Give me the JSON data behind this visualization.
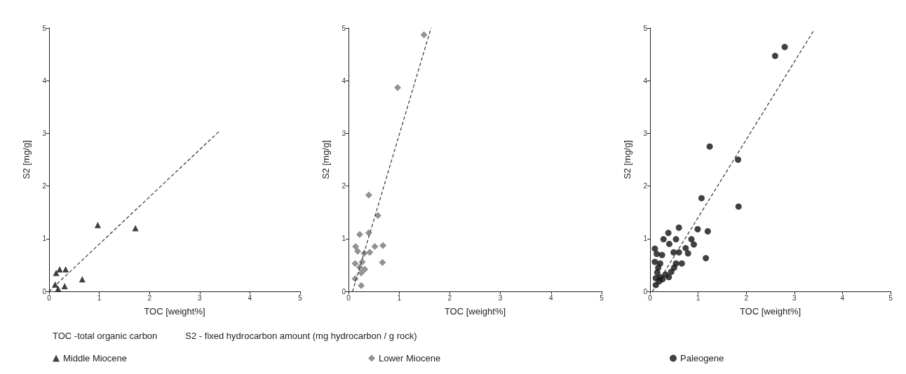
{
  "chart_data": [
    {
      "type": "scatter",
      "xlabel": "TOC [weight%]",
      "ylabel": "S2 [mg/g]",
      "xlim": [
        0,
        5
      ],
      "xticks": [
        0,
        1,
        2,
        3,
        4,
        5
      ],
      "ylim": [
        0,
        5
      ],
      "yticks": [
        0,
        1,
        2,
        3,
        4,
        5
      ],
      "grid": false,
      "legend": "bottom left",
      "annotations": [
        "TOC -total organic carbon",
        "S2 - fixed hydrocarbon amount (mg hydrocarbon / g rock)"
      ],
      "series": [
        {
          "name": "Middle Miocene",
          "marker": "triangle",
          "color": "#111111",
          "x": [
            0.97,
            1.72,
            0.66,
            0.31,
            0.33,
            0.21,
            0.14,
            0.12,
            0.18
          ],
          "values": [
            1.26,
            1.2,
            0.23,
            0.1,
            0.42,
            0.42,
            0.35,
            0.13,
            0.05
          ]
        },
        {
          "type": "line",
          "marker": "none",
          "line_style": "dashed",
          "color": "#333333",
          "x": [
            0,
            3.4
          ],
          "values": [
            0,
            3.05
          ]
        }
      ]
    },
    {
      "type": "scatter",
      "xlabel": "TOC [weight%]",
      "ylabel": "S2 [mg/g]",
      "xlim": [
        0,
        5
      ],
      "xticks": [
        0,
        1,
        2,
        3,
        4,
        5
      ],
      "ylim": [
        0,
        5
      ],
      "yticks": [
        0,
        1,
        2,
        3,
        4,
        5
      ],
      "grid": false,
      "legend": "bottom left",
      "series": [
        {
          "name": "Lower Miocene",
          "marker": "diamond",
          "color": "#777777",
          "x": [
            1.49,
            0.97,
            0.4,
            0.58,
            0.22,
            0.4,
            0.14,
            0.18,
            0.31,
            0.42,
            0.52,
            0.68,
            0.67,
            0.13,
            0.27,
            0.22,
            0.32,
            0.25,
            0.13,
            0.25
          ],
          "values": [
            4.87,
            3.87,
            1.83,
            1.44,
            1.08,
            1.11,
            0.85,
            0.76,
            0.72,
            0.74,
            0.85,
            0.87,
            0.55,
            0.53,
            0.56,
            0.46,
            0.42,
            0.35,
            0.24,
            0.11
          ]
        },
        {
          "type": "line",
          "marker": "none",
          "line_style": "dashed",
          "color": "#333333",
          "x": [
            0.08,
            1.63
          ],
          "values": [
            0,
            5
          ]
        }
      ]
    },
    {
      "type": "scatter",
      "xlabel": "TOC [weight%]",
      "ylabel": "S2 [mg/g]",
      "xlim": [
        0,
        5
      ],
      "xticks": [
        0,
        1,
        2,
        3,
        4,
        5
      ],
      "ylim": [
        0,
        5
      ],
      "yticks": [
        0,
        1,
        2,
        3,
        4,
        5
      ],
      "grid": false,
      "legend": "bottom left",
      "series": [
        {
          "name": "Paleogene",
          "marker": "circle",
          "color": "#111111",
          "x": [
            2.8,
            2.6,
            1.24,
            1.83,
            1.07,
            1.84,
            0.6,
            0.38,
            0.99,
            1.2,
            0.28,
            0.54,
            0.86,
            0.4,
            0.91,
            0.1,
            0.74,
            0.49,
            0.6,
            0.79,
            0.14,
            0.25,
            1.16,
            0.1,
            0.21,
            0.54,
            0.66,
            0.5,
            0.17,
            0.44,
            0.15,
            0.32,
            0.21,
            0.12,
            0.39,
            0.19,
            0.12,
            0.26
          ],
          "values": [
            4.64,
            4.47,
            2.75,
            2.5,
            1.77,
            1.61,
            1.21,
            1.11,
            1.18,
            1.14,
            0.99,
            0.99,
            0.99,
            0.9,
            0.89,
            0.81,
            0.82,
            0.74,
            0.74,
            0.72,
            0.71,
            0.69,
            0.63,
            0.56,
            0.53,
            0.53,
            0.53,
            0.45,
            0.45,
            0.37,
            0.36,
            0.32,
            0.27,
            0.25,
            0.27,
            0.19,
            0.12,
            0.23
          ]
        },
        {
          "type": "line",
          "marker": "none",
          "line_style": "dashed",
          "color": "#333333",
          "x": [
            0.05,
            3.4
          ],
          "values": [
            0,
            4.95
          ]
        }
      ]
    }
  ]
}
